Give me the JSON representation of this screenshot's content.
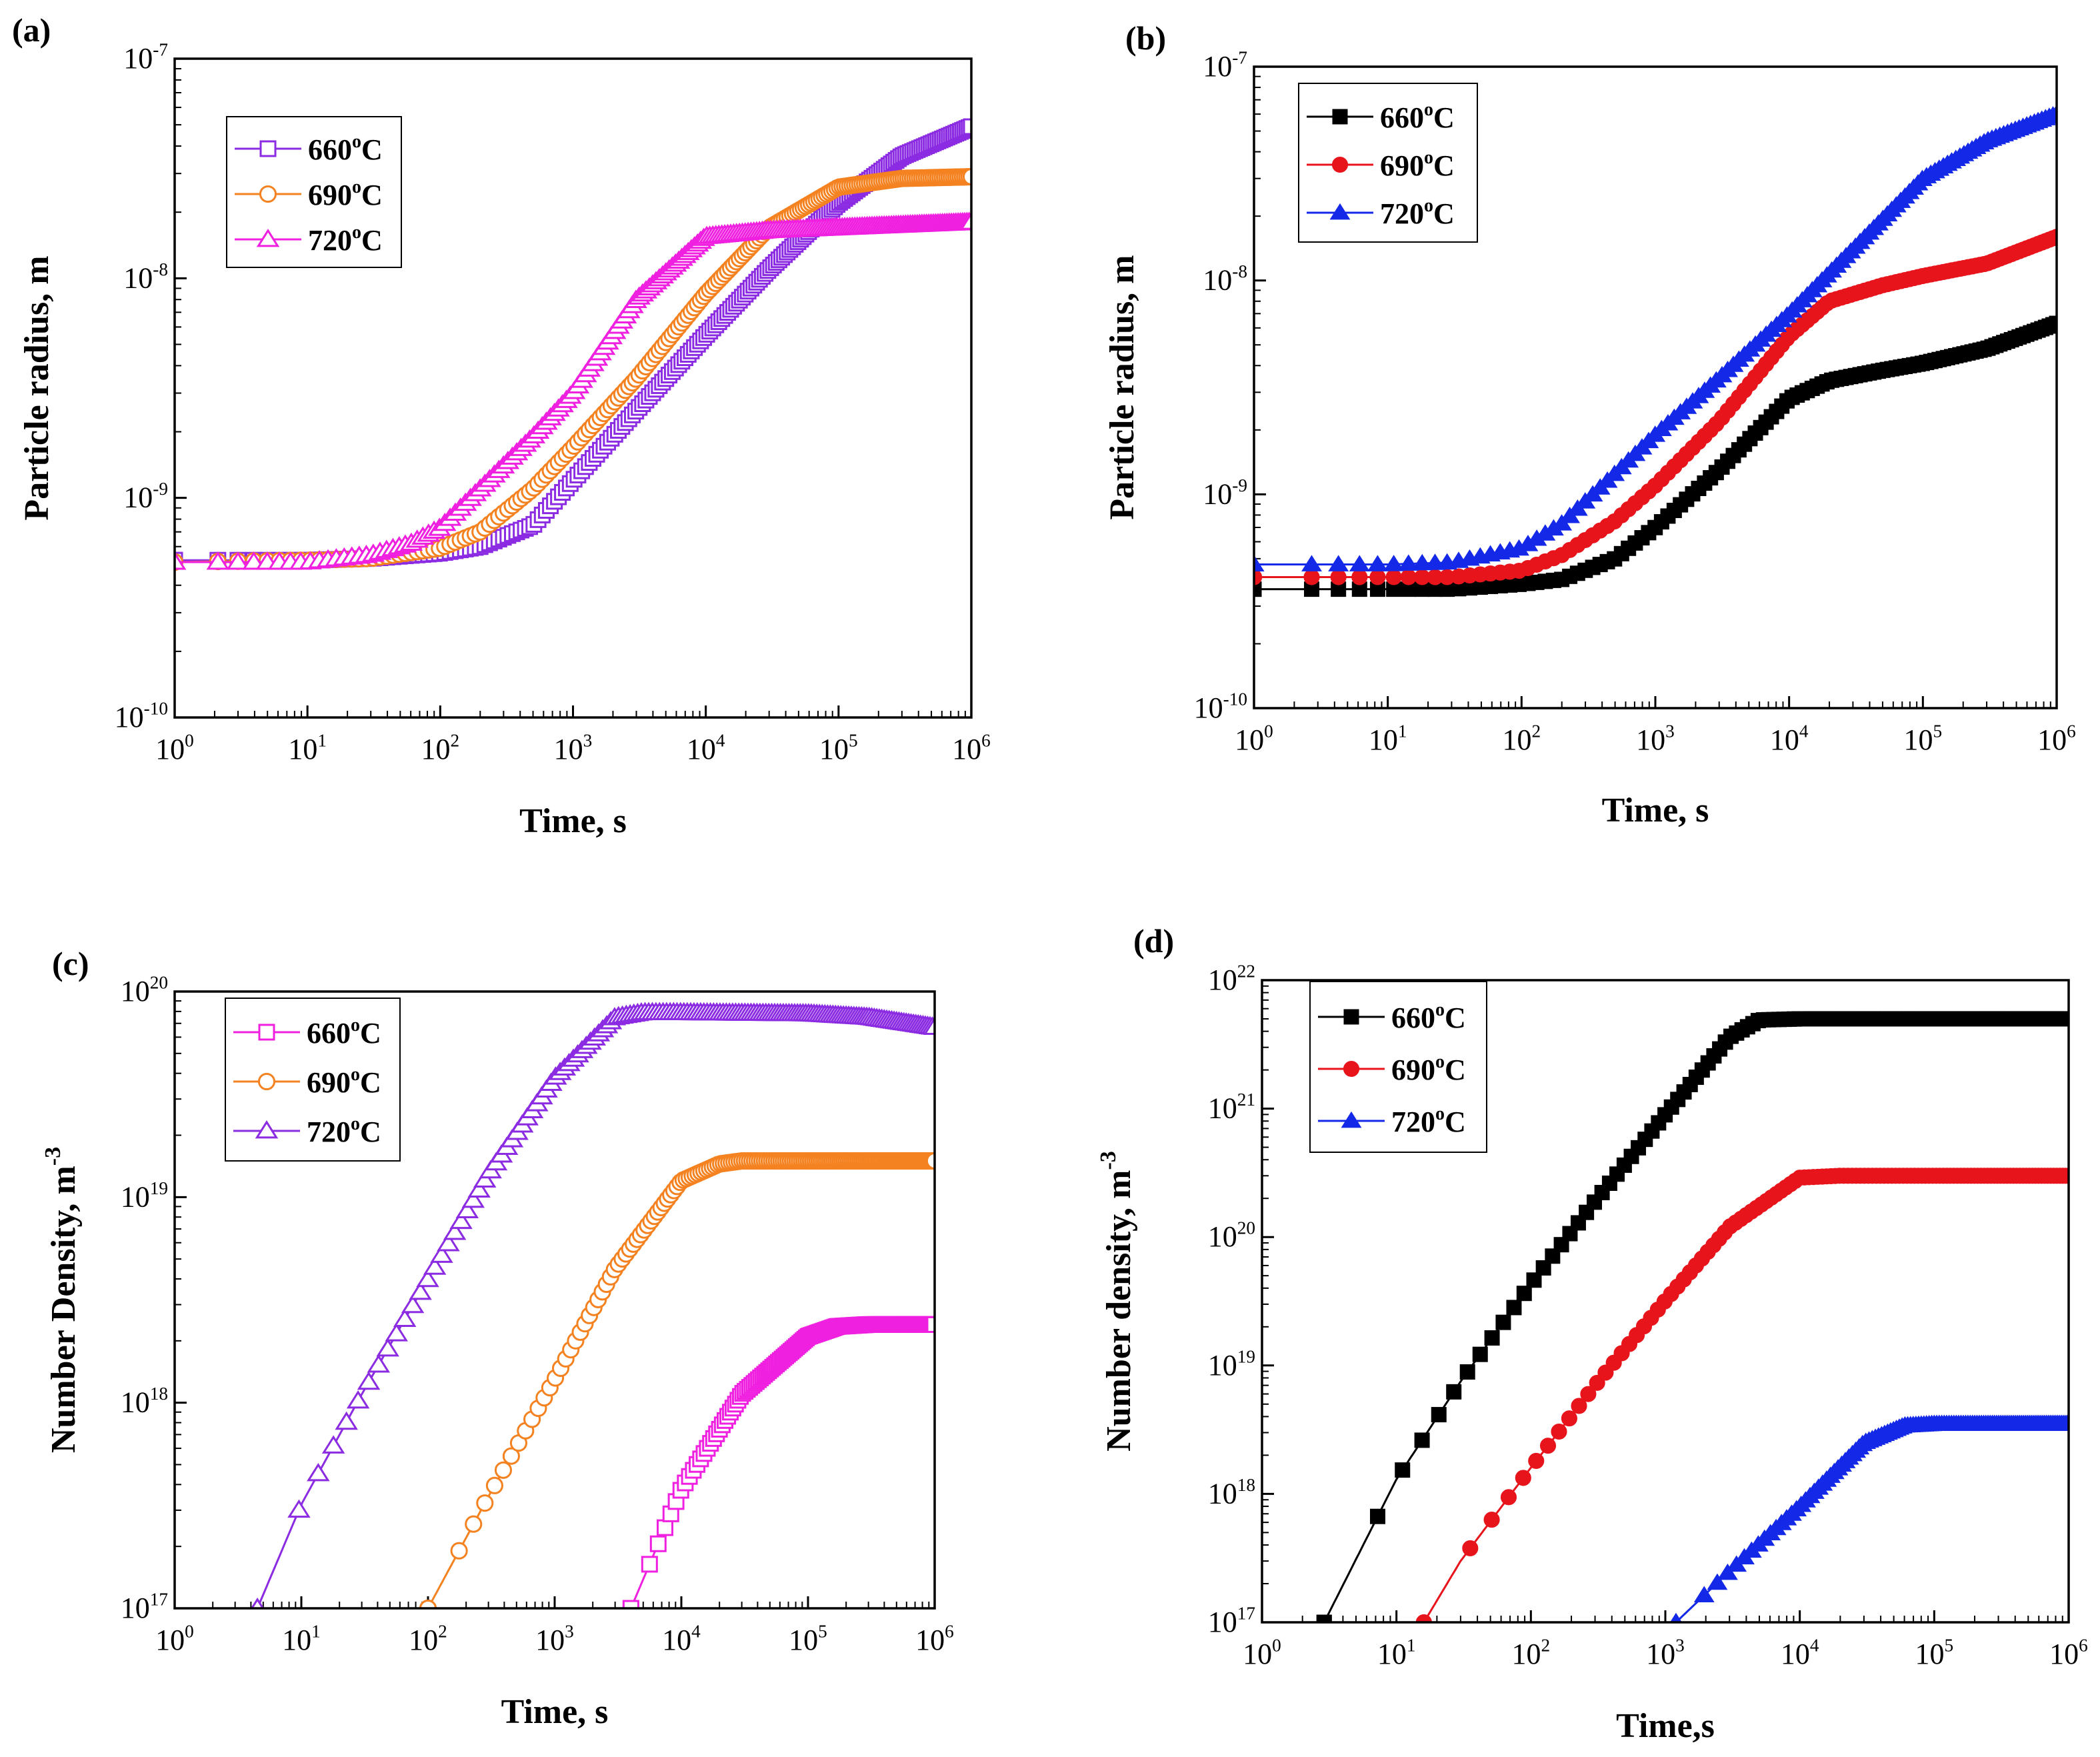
{
  "panels": [
    {
      "label": "(a)",
      "chart_data": {
        "type": "line",
        "xscale": "log",
        "yscale": "log",
        "xlim": [
          1,
          1000000
        ],
        "ylim": [
          1e-10,
          1e-07
        ],
        "xlabel": "Time, s",
        "ylabel": "Particle radius, m",
        "xticks": [
          {
            "v": 1,
            "b": "10",
            "e": "0"
          },
          {
            "v": 10,
            "b": "10",
            "e": "1"
          },
          {
            "v": 100,
            "b": "10",
            "e": "2"
          },
          {
            "v": 1000,
            "b": "10",
            "e": "3"
          },
          {
            "v": 10000,
            "b": "10",
            "e": "4"
          },
          {
            "v": 100000,
            "b": "10",
            "e": "5"
          },
          {
            "v": 1000000,
            "b": "10",
            "e": "6"
          }
        ],
        "yticks": [
          {
            "v": 1e-10,
            "b": "10",
            "e": "-10"
          },
          {
            "v": 1e-09,
            "b": "10",
            "e": "-9"
          },
          {
            "v": 1e-08,
            "b": "10",
            "e": "-8"
          },
          {
            "v": 1e-07,
            "b": "10",
            "e": "-7"
          }
        ],
        "legend_position": "top-left",
        "series": [
          {
            "name": "660",
            "unit": "oC",
            "color": "#8B2BE2",
            "marker": "square",
            "filled": false,
            "x": [
              1,
              10,
              30,
              100,
              200,
              500,
              1000,
              3000,
              10000,
              30000,
              100000,
              300000,
              1000000
            ],
            "y": [
              5.2e-10,
              5.2e-10,
              5.3e-10,
              5.6e-10,
              6e-10,
              7.5e-10,
              1.2e-09,
              2.5e-09,
              5.5e-09,
              1.1e-08,
              2.2e-08,
              3.6e-08,
              4.9e-08
            ]
          },
          {
            "name": "690",
            "unit": "oC",
            "color": "#F58220",
            "marker": "circle",
            "filled": false,
            "x": [
              1,
              10,
              30,
              100,
              200,
              500,
              1000,
              3000,
              10000,
              30000,
              100000,
              300000,
              1000000
            ],
            "y": [
              5.1e-10,
              5.2e-10,
              5.3e-10,
              5.9e-10,
              7e-10,
              1.1e-09,
              1.7e-09,
              3.5e-09,
              8.5e-09,
              1.7e-08,
              2.6e-08,
              2.85e-08,
              2.9e-08
            ]
          },
          {
            "name": "720",
            "unit": "oC",
            "color": "#F020E0",
            "marker": "triangle",
            "filled": false,
            "x": [
              1,
              10,
              30,
              60,
              100,
              200,
              500,
              1000,
              3000,
              10000,
              30000,
              100000,
              1000000
            ],
            "y": [
              5.1e-10,
              5.1e-10,
              5.5e-10,
              6.2e-10,
              7.3e-10,
              1.1e-09,
              1.9e-09,
              3e-09,
              8e-09,
              1.55e-08,
              1.65e-08,
              1.7e-08,
              1.8e-08
            ]
          }
        ]
      }
    },
    {
      "label": "(b)",
      "chart_data": {
        "type": "line",
        "xscale": "log",
        "yscale": "log",
        "xlim": [
          1,
          1000000
        ],
        "ylim": [
          1e-10,
          1e-07
        ],
        "xlabel": "Time, s",
        "ylabel": "Particle radius, m",
        "xticks": [
          {
            "v": 1,
            "b": "10",
            "e": "0"
          },
          {
            "v": 10,
            "b": "10",
            "e": "1"
          },
          {
            "v": 100,
            "b": "10",
            "e": "2"
          },
          {
            "v": 1000,
            "b": "10",
            "e": "3"
          },
          {
            "v": 10000,
            "b": "10",
            "e": "4"
          },
          {
            "v": 100000,
            "b": "10",
            "e": "5"
          },
          {
            "v": 1000000,
            "b": "10",
            "e": "6"
          }
        ],
        "yticks": [
          {
            "v": 1e-10,
            "b": "10",
            "e": "-10"
          },
          {
            "v": 1e-09,
            "b": "10",
            "e": "-9"
          },
          {
            "v": 1e-08,
            "b": "10",
            "e": "-8"
          },
          {
            "v": 1e-07,
            "b": "10",
            "e": "-7"
          }
        ],
        "legend_position": "top-left",
        "series": [
          {
            "name": "660",
            "unit": "oC",
            "color": "#000000",
            "marker": "square",
            "filled": true,
            "x": [
              1,
              10,
              30,
              100,
              200,
              500,
              1000,
              3000,
              10000,
              20000,
              50000,
              100000,
              300000,
              1000000
            ],
            "y": [
              3.6e-10,
              3.6e-10,
              3.6e-10,
              3.8e-10,
              4e-10,
              5e-10,
              7e-10,
              1.3e-09,
              2.8e-09,
              3.4e-09,
              3.8e-09,
              4.1e-09,
              4.8e-09,
              6.3e-09
            ]
          },
          {
            "name": "690",
            "unit": "oC",
            "color": "#E8141C",
            "marker": "circle",
            "filled": true,
            "x": [
              1,
              10,
              30,
              100,
              200,
              500,
              1000,
              3000,
              10000,
              20000,
              50000,
              100000,
              300000,
              1000000
            ],
            "y": [
              4.1e-10,
              4.1e-10,
              4.1e-10,
              4.4e-10,
              5.2e-10,
              7.5e-10,
              1.1e-09,
              2.2e-09,
              5.5e-09,
              8e-09,
              9.5e-09,
              1.05e-08,
              1.2e-08,
              1.6e-08
            ]
          },
          {
            "name": "720",
            "unit": "oC",
            "color": "#1428E8",
            "marker": "triangle",
            "filled": true,
            "x": [
              1,
              10,
              30,
              100,
              200,
              500,
              1000,
              3000,
              10000,
              30000,
              100000,
              300000,
              1000000
            ],
            "y": [
              4.7e-10,
              4.7e-10,
              4.8e-10,
              5.6e-10,
              7.3e-10,
              1.25e-09,
              1.9e-09,
              3.5e-09,
              7e-09,
              1.4e-08,
              3e-08,
              4.5e-08,
              6e-08
            ]
          }
        ]
      }
    },
    {
      "label": "(c)",
      "chart_data": {
        "type": "line",
        "xscale": "log",
        "yscale": "log",
        "xlim": [
          1,
          1000000
        ],
        "ylim": [
          1e+17,
          1e+20
        ],
        "xlabel": "Time, s",
        "ylabel": "Number Density, m",
        "ylabel_exp": "-3",
        "xticks": [
          {
            "v": 1,
            "b": "10",
            "e": "0"
          },
          {
            "v": 10,
            "b": "10",
            "e": "1"
          },
          {
            "v": 100,
            "b": "10",
            "e": "2"
          },
          {
            "v": 1000,
            "b": "10",
            "e": "3"
          },
          {
            "v": 10000,
            "b": "10",
            "e": "4"
          },
          {
            "v": 100000,
            "b": "10",
            "e": "5"
          },
          {
            "v": 1000000,
            "b": "10",
            "e": "6"
          }
        ],
        "yticks": [
          {
            "v": 1e+17,
            "b": "10",
            "e": "17"
          },
          {
            "v": 1e+18,
            "b": "10",
            "e": "18"
          },
          {
            "v": 1e+19,
            "b": "10",
            "e": "19"
          },
          {
            "v": 1e+20,
            "b": "10",
            "e": "20"
          }
        ],
        "legend_position": "top-left",
        "series": [
          {
            "name": "660",
            "unit": "oC",
            "color": "#F020E0",
            "marker": "square",
            "filled": false,
            "x": [
              4000,
              10000,
              30000,
              100000,
              170000,
              300000,
              1000000
            ],
            "y": [
              1e+17,
              3.8e+17,
              1.1e+18,
              2.1e+18,
              2.35e+18,
              2.4e+18,
              2.4e+18
            ]
          },
          {
            "name": "690",
            "unit": "oC",
            "color": "#F58220",
            "marker": "circle",
            "filled": false,
            "x": [
              100,
              300,
              1000,
              3000,
              10000,
              20000,
              30000,
              100000,
              1000000
            ],
            "y": [
              1e+17,
              3.5e+17,
              1.3e+18,
              4.5e+18,
              1.2e+19,
              1.45e+19,
              1.5e+19,
              1.5e+19,
              1.5e+19
            ]
          },
          {
            "name": "720",
            "unit": "oC",
            "color": "#8B2BE2",
            "marker": "triangle",
            "filled": false,
            "x": [
              4.5,
              10,
              30,
              100,
              300,
              1000,
              3000,
              5000,
              10000,
              100000,
              300000,
              1000000
            ],
            "y": [
              1e+17,
              3.2e+17,
              1.1e+18,
              4e+18,
              1.3e+19,
              3.8e+19,
              7.5e+19,
              7.9e+19,
              7.9e+19,
              7.8e+19,
              7.5e+19,
              6.7e+19
            ]
          }
        ]
      }
    },
    {
      "label": "(d)",
      "chart_data": {
        "type": "line",
        "xscale": "log",
        "yscale": "log",
        "xlim": [
          1,
          1000000
        ],
        "ylim": [
          1e+17,
          1e+22
        ],
        "xlabel": "Time,s",
        "ylabel": "Number density, m",
        "ylabel_exp": "-3",
        "xticks": [
          {
            "v": 1,
            "b": "10",
            "e": "0"
          },
          {
            "v": 10,
            "b": "10",
            "e": "1"
          },
          {
            "v": 100,
            "b": "10",
            "e": "2"
          },
          {
            "v": 1000,
            "b": "10",
            "e": "3"
          },
          {
            "v": 10000,
            "b": "10",
            "e": "4"
          },
          {
            "v": 100000,
            "b": "10",
            "e": "5"
          },
          {
            "v": 1000000,
            "b": "10",
            "e": "6"
          }
        ],
        "yticks": [
          {
            "v": 1e+17,
            "b": "10",
            "e": "17"
          },
          {
            "v": 1e+18,
            "b": "10",
            "e": "18"
          },
          {
            "v": 1e+19,
            "b": "10",
            "e": "19"
          },
          {
            "v": 1e+20,
            "b": "10",
            "e": "20"
          },
          {
            "v": 1e+21,
            "b": "10",
            "e": "21"
          },
          {
            "v": 1e+22,
            "b": "10",
            "e": "22"
          }
        ],
        "legend_position": "top-left",
        "series": [
          {
            "name": "660",
            "unit": "oC",
            "color": "#000000",
            "marker": "square",
            "filled": true,
            "x": [
              2.9,
              10,
              30,
              100,
              300,
              1000,
              3000,
              5000,
              10000,
              100000,
              1000000
            ],
            "y": [
              1e+17,
              1.3e+18,
              7.5e+18,
              4.3e+19,
              1.9e+20,
              9e+20,
              3.6e+21,
              4.9e+21,
              5e+21,
              5e+21,
              5e+21
            ]
          },
          {
            "name": "690",
            "unit": "oC",
            "color": "#E8141C",
            "marker": "circle",
            "filled": true,
            "x": [
              16,
              30,
              100,
              300,
              1000,
              3000,
              10000,
              20000,
              100000,
              1000000
            ],
            "y": [
              1e+17,
              3e+17,
              1.6e+18,
              7e+18,
              3.2e+19,
              1.2e+20,
              2.9e+20,
              3e+20,
              3e+20,
              3e+20
            ]
          },
          {
            "name": "720",
            "unit": "oC",
            "color": "#1428E8",
            "marker": "triangle",
            "filled": true,
            "x": [
              1200,
              3000,
              10000,
              30000,
              60000,
              100000,
              1000000
            ],
            "y": [
              1e+17,
              2.5e+17,
              8e+17,
              2.5e+18,
              3.4e+18,
              3.5e+18,
              3.5e+18
            ]
          }
        ]
      }
    }
  ]
}
